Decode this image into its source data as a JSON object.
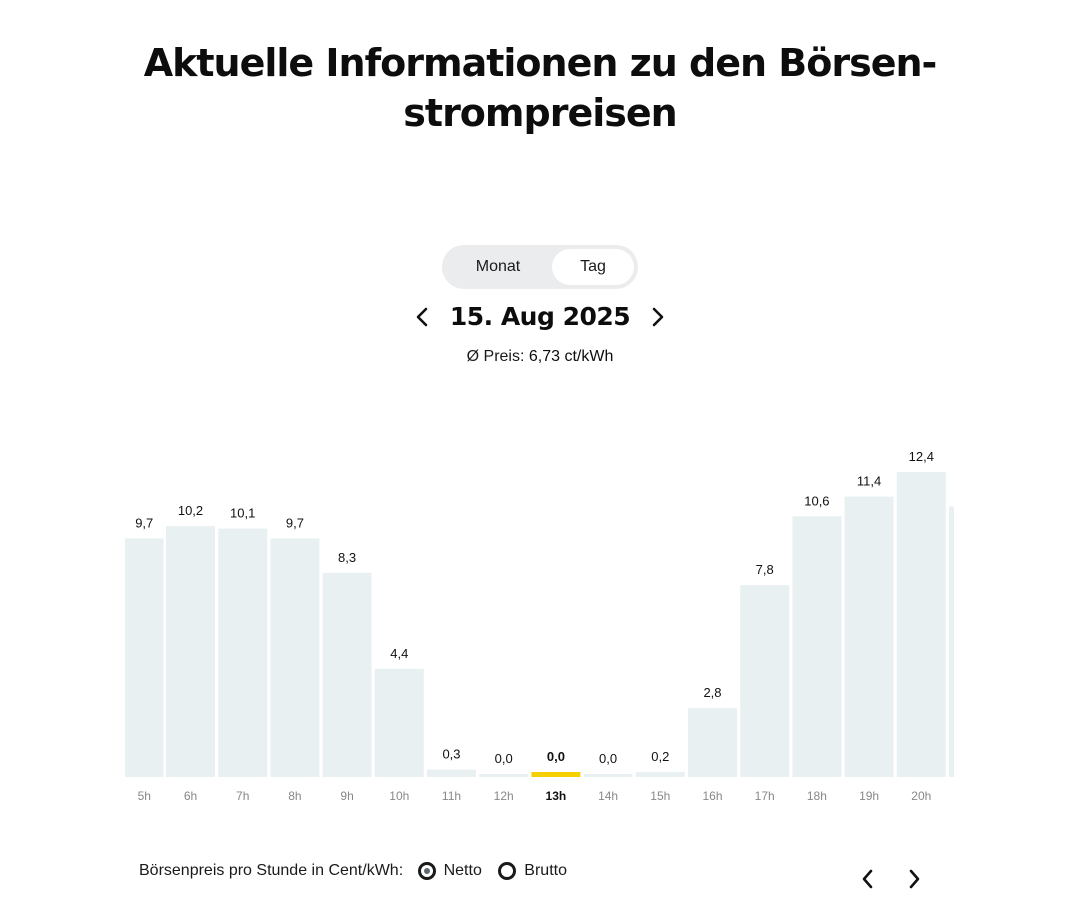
{
  "page": {
    "title": "Aktuelle Informationen zu den Börsen-strompreisen"
  },
  "toggle": {
    "options": [
      "Monat",
      "Tag"
    ],
    "selected": "Tag"
  },
  "date": {
    "label": "15. Aug 2025"
  },
  "average": {
    "prefix": "Ø Preis:",
    "value": "6,73 ct/kWh"
  },
  "legend": {
    "label": "Börsenpreis pro Stunde in Cent/kWh:",
    "netto": "Netto",
    "brutto": "Brutto",
    "selected": "Netto"
  },
  "colors": {
    "bar": "#e9f0f1",
    "highlight": "#f5d000",
    "text": "#111111",
    "axis_text": "#888888"
  },
  "chart_data": {
    "type": "bar",
    "title": "",
    "xlabel": "",
    "ylabel": "",
    "categories": [
      "5h",
      "6h",
      "7h",
      "8h",
      "9h",
      "10h",
      "11h",
      "12h",
      "13h",
      "14h",
      "15h",
      "16h",
      "17h",
      "18h",
      "19h",
      "20h"
    ],
    "values": [
      9.7,
      10.2,
      10.1,
      9.7,
      8.3,
      4.4,
      0.3,
      0.0,
      0.0,
      0.0,
      0.2,
      2.8,
      7.8,
      10.6,
      11.4,
      12.4
    ],
    "labels": [
      "9,7",
      "10,2",
      "10,1",
      "9,7",
      "8,3",
      "4,4",
      "0,3",
      "0,0",
      "0,0",
      "0,0",
      "0,2",
      "2,8",
      "7,8",
      "10,6",
      "11,4",
      "12,4"
    ],
    "highlight_category": "13h",
    "ylim": [
      0,
      12.4
    ],
    "grid": false,
    "partially_visible_next_value": 11.0
  }
}
